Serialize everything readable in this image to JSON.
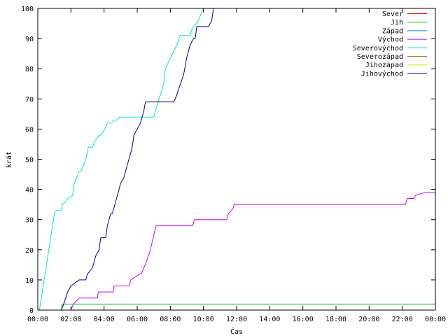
{
  "chart_data": {
    "type": "line",
    "xlabel": "Čas",
    "ylabel": "krát",
    "xlim": [
      0,
      24
    ],
    "ylim": [
      0,
      100
    ],
    "x_ticks": [
      0,
      2,
      4,
      6,
      8,
      10,
      12,
      14,
      16,
      18,
      20,
      22,
      24
    ],
    "x_tick_labels": [
      "00:00",
      "02:00",
      "04:00",
      "06:00",
      "08:00",
      "10:00",
      "12:00",
      "14:00",
      "16:00",
      "18:00",
      "20:00",
      "22:00",
      "00:00"
    ],
    "y_ticks": [
      0,
      10,
      20,
      30,
      40,
      50,
      60,
      70,
      80,
      90,
      100
    ],
    "y_tick_labels": [
      "0",
      "10",
      "20",
      "30",
      "40",
      "50",
      "60",
      "70",
      "80",
      "90",
      "100"
    ],
    "grid": false,
    "legend_position": "top-right",
    "series": [
      {
        "name": "Sever",
        "color": "#ff0000",
        "x": [],
        "y": []
      },
      {
        "name": "Jih",
        "color": "#00c000",
        "x": [
          0,
          1.45,
          1.45,
          24
        ],
        "y": [
          0,
          0,
          2,
          2
        ]
      },
      {
        "name": "Západ",
        "color": "#0080ff",
        "x": [],
        "y": []
      },
      {
        "name": "Východ",
        "color": "#c000ff",
        "x": [
          0,
          2.0,
          2.15,
          2.5,
          3.6,
          3.65,
          4.55,
          4.6,
          5.55,
          5.6,
          6.15,
          6.25,
          6.55,
          6.8,
          7.0,
          7.15,
          7.25,
          9.35,
          9.45,
          11.4,
          11.5,
          11.7,
          11.8,
          11.85,
          22.2,
          22.3,
          22.7,
          22.8,
          23.4,
          24
        ],
        "y": [
          0,
          0,
          2,
          4,
          4,
          6,
          6,
          8,
          8,
          10,
          12,
          12,
          16,
          20,
          25,
          28,
          28,
          28,
          30,
          30,
          32,
          33,
          34,
          35,
          35,
          37,
          37,
          38,
          39,
          39
        ]
      },
      {
        "name": "Severovýchod",
        "color": "#00e0e0",
        "x": [
          0,
          0.1,
          1.0,
          1.1,
          1.4,
          1.5,
          1.7,
          1.8,
          2.1,
          2.2,
          2.5,
          2.6,
          2.9,
          3.05,
          3.3,
          3.45,
          3.7,
          3.8,
          4.05,
          4.2,
          4.45,
          4.6,
          4.8,
          4.9,
          7.0,
          7.1,
          7.6,
          7.7,
          8.4,
          8.6,
          9.0,
          9.2,
          9.3,
          9.7,
          9.9,
          10.0
        ],
        "y": [
          0,
          0,
          32,
          33,
          33,
          35,
          36,
          37,
          38,
          42,
          46,
          46,
          50,
          54,
          54,
          56,
          58,
          58,
          60,
          62,
          62,
          63,
          63,
          64,
          64,
          66,
          75,
          80,
          88,
          91,
          91,
          91,
          93,
          96,
          99,
          100
        ]
      },
      {
        "name": "Severozápad",
        "color": "#c07000",
        "x": [],
        "y": []
      },
      {
        "name": "Jihozápad",
        "color": "#e0e000",
        "x": [],
        "y": []
      },
      {
        "name": "Jihovýchod",
        "color": "#000080",
        "x": [
          0,
          1.4,
          1.5,
          1.8,
          2.0,
          2.5,
          2.9,
          3.0,
          3.3,
          3.5,
          3.7,
          3.8,
          4.1,
          4.2,
          4.4,
          4.5,
          4.9,
          5.0,
          5.2,
          5.3,
          5.5,
          5.7,
          5.8,
          6.2,
          6.4,
          6.5,
          6.6,
          6.7,
          7.5,
          7.6,
          8.2,
          8.3,
          8.8,
          9.0,
          9.2,
          9.4,
          9.5,
          9.6,
          10.3,
          10.5,
          10.6
        ],
        "y": [
          0,
          0,
          1,
          6,
          8,
          10,
          10,
          12,
          14,
          18,
          20,
          24,
          24,
          28,
          32,
          32,
          40,
          42,
          44,
          46,
          50,
          54,
          58,
          62,
          66,
          69,
          69,
          69,
          69,
          69,
          69,
          70,
          78,
          84,
          88,
          90,
          90,
          94,
          94,
          96,
          100
        ]
      }
    ]
  }
}
